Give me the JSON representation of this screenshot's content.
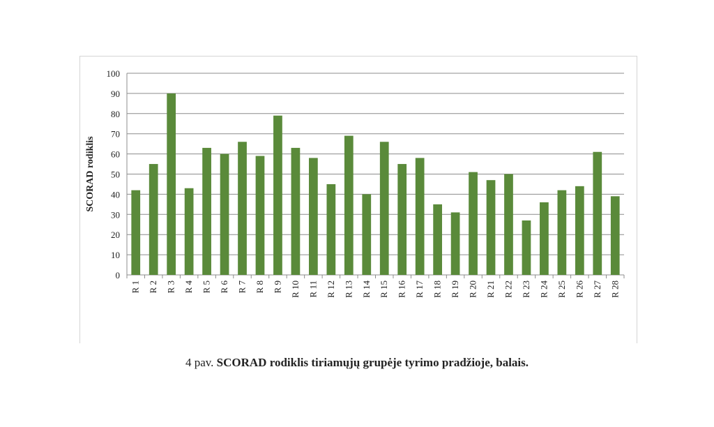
{
  "chart_data": {
    "type": "bar",
    "ylabel": "SCORAD rodiklis",
    "xlabel": "",
    "ylim": [
      0,
      100
    ],
    "yticks": [
      0,
      10,
      20,
      30,
      40,
      50,
      60,
      70,
      80,
      90,
      100
    ],
    "grid": true,
    "bar_color": "#5a8a3a",
    "categories": [
      "R 1",
      "R 2",
      "R 3",
      "R 4",
      "R 5",
      "R 6",
      "R 7",
      "R 8",
      "R 9",
      "R 10",
      "R 11",
      "R 12",
      "R 13",
      "R 14",
      "R 15",
      "R 16",
      "R 17",
      "R 18",
      "R 19",
      "R 20",
      "R 21",
      "R 22",
      "R 23",
      "R 24",
      "R 25",
      "R 26",
      "R 27",
      "R 28"
    ],
    "values": [
      42,
      55,
      90,
      43,
      63,
      60,
      66,
      59,
      79,
      63,
      58,
      45,
      69,
      40,
      66,
      55,
      58,
      35,
      31,
      51,
      47,
      50,
      27,
      36,
      42,
      44,
      61,
      39
    ]
  },
  "caption": {
    "prefix": "4 pav.",
    "title": "SCORAD rodiklis tiriamųjų grupėje tyrimo pradžioje, balais."
  }
}
